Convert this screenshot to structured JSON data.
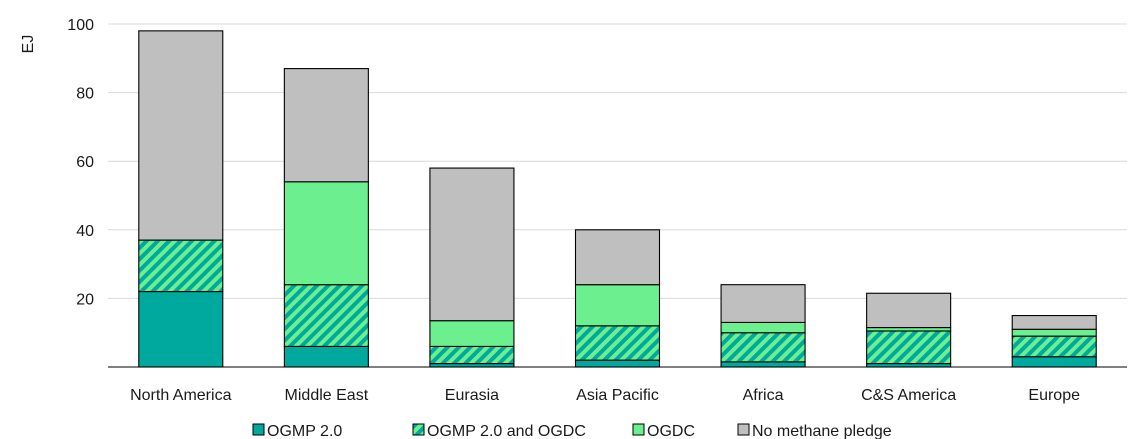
{
  "chart_data": {
    "type": "bar",
    "stacked": true,
    "categories": [
      "North America",
      "Middle East",
      "Eurasia",
      "Asia Pacific",
      "Africa",
      "C&S America",
      "Europe"
    ],
    "ylabel": "EJ",
    "xlabel": "",
    "ylim": [
      0,
      100
    ],
    "yticks": [
      "20",
      "40",
      "60",
      "80",
      "100"
    ],
    "grid": true,
    "legend_position": "bottom",
    "series": [
      {
        "name": "OGMP 2.0",
        "values": [
          22,
          6,
          1,
          2,
          1.5,
          1,
          3
        ],
        "color": "#00a99d",
        "pattern": "solid"
      },
      {
        "name": "OGMP 2.0 and OGDC",
        "values": [
          15,
          18,
          5,
          10,
          8.5,
          9.5,
          6
        ],
        "color": "#00a99d",
        "pattern": "hatched"
      },
      {
        "name": "OGDC",
        "values": [
          0,
          30,
          7.5,
          12,
          3,
          1,
          2
        ],
        "color": "#6cf08f",
        "pattern": "solid"
      },
      {
        "name": "No methane pledge",
        "values": [
          61,
          33,
          44.5,
          16,
          11,
          10,
          4
        ],
        "color": "#bfbfbf",
        "pattern": "solid"
      }
    ]
  }
}
